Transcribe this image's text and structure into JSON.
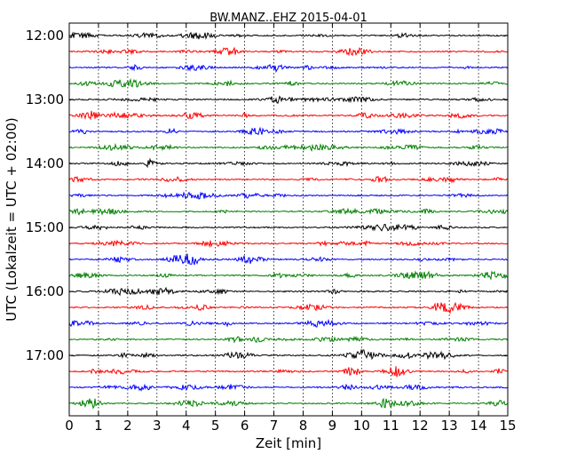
{
  "chart_data": {
    "type": "line",
    "title": "BW.MANZ..EHZ 2015-04-01",
    "xlabel": "Zeit  [min]",
    "ylabel": "UTC (Lokalzeit = UTC + 02:00)",
    "xlim": [
      0,
      15
    ],
    "x_ticks": [
      "0",
      "1",
      "2",
      "3",
      "4",
      "5",
      "6",
      "7",
      "8",
      "9",
      "10",
      "11",
      "12",
      "13",
      "14",
      "15"
    ],
    "y_ticks": [
      {
        "label": "12:00",
        "trace_index": 0
      },
      {
        "label": "13:00",
        "trace_index": 4
      },
      {
        "label": "14:00",
        "trace_index": 8
      },
      {
        "label": "15:00",
        "trace_index": 12
      },
      {
        "label": "16:00",
        "trace_index": 16
      },
      {
        "label": "17:00",
        "trace_index": 20
      }
    ],
    "trace_interval_min": 15,
    "trace_count": 24,
    "trace_colors": [
      "#000000",
      "#ff0000",
      "#0000ff",
      "#008000"
    ],
    "grid": {
      "x": "dotted",
      "y": "none"
    },
    "legend": "none"
  }
}
